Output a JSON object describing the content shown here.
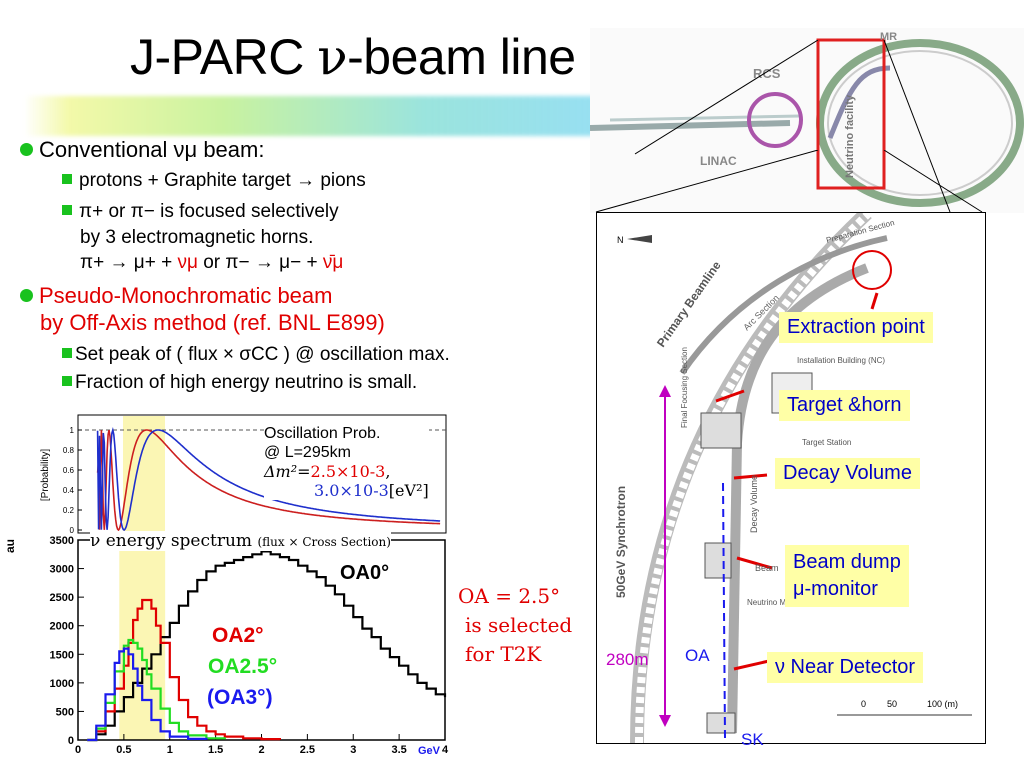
{
  "title": {
    "prefix": "J-PARC ",
    "nu": "ν",
    "suffix": "-beam line"
  },
  "bullets": {
    "b1": "Conventional νμ beam:",
    "b1_sub1": "protons + Graphite target  → pions",
    "b1_sub2_line1": "π+ or π− is focused selectively",
    "b1_sub2_line2": "by 3 electromagnetic horns.",
    "b1_sub2_line3_a": "π+ → μ+ + ",
    "b1_sub2_line3_nu": "νμ",
    "b1_sub2_line3_b": " or  π− → μ− + ",
    "b1_sub2_line3_nubar": "ν̄μ",
    "b2_line1": "Pseudo-Monochromatic beam",
    "b2_line2": "by Off-Axis method (ref. BNL E899)",
    "b2_sub1": "Set peak of ( flux × σCC ) @ oscillation max.",
    "b2_sub2": "Fraction of high energy neutrino is small."
  },
  "osc_plot": {
    "legend_line1": "Oscillation Prob.",
    "legend_line2": "@ L=295km",
    "legend_line3_a": "Δm²=",
    "legend_line3_red": "2.5×10-3",
    "legend_line3_c": ",",
    "legend_line4_blue": "3.0×10-3",
    "legend_line4_d": "[eV²]",
    "ylabel": "[Probability]",
    "yticks": [
      "1",
      "0.8",
      "0.6",
      "0.4",
      "0.2",
      "0"
    ]
  },
  "spectrum": {
    "title_main": "ν energy spectrum",
    "title_small": "(flux × Cross Section)",
    "ylabel": "au",
    "xunit": "GeV",
    "yticks": [
      "3500",
      "3000",
      "2500",
      "2000",
      "1500",
      "1000",
      "500",
      "0"
    ],
    "xticks": [
      "0",
      "0.5",
      "1",
      "1.5",
      "2",
      "2.5",
      "3",
      "3.5",
      "4"
    ],
    "label_oa0": "OA0°",
    "label_oa2": "OA2°",
    "label_oa25": "OA2.5°",
    "label_oa3": "(OA3°)"
  },
  "chart_data": {
    "type": "line",
    "xlabel": "GeV",
    "ylabel": "au",
    "xlim": [
      0,
      4
    ],
    "ylim": [
      0,
      3500
    ],
    "series": [
      {
        "name": "OA0°",
        "color": "#000000",
        "x": [
          0.1,
          0.2,
          0.3,
          0.4,
          0.5,
          0.6,
          0.7,
          0.8,
          0.9,
          1.0,
          1.1,
          1.2,
          1.3,
          1.4,
          1.5,
          1.6,
          1.7,
          1.8,
          1.9,
          2.0,
          2.1,
          2.2,
          2.3,
          2.4,
          2.5,
          2.6,
          2.7,
          2.8,
          2.9,
          3.0,
          3.1,
          3.2,
          3.3,
          3.4,
          3.5,
          3.6,
          3.7,
          3.8,
          3.9,
          4.0
        ],
        "y": [
          0,
          100,
          250,
          500,
          750,
          1000,
          1250,
          1500,
          1800,
          2050,
          2350,
          2600,
          2800,
          2950,
          3050,
          3100,
          3150,
          3200,
          3250,
          3300,
          3250,
          3200,
          3150,
          3050,
          2950,
          2850,
          2700,
          2550,
          2350,
          2150,
          1950,
          1800,
          1600,
          1450,
          1300,
          1150,
          1000,
          900,
          800,
          750
        ]
      },
      {
        "name": "OA2°",
        "color": "#e00000",
        "x": [
          0.1,
          0.2,
          0.3,
          0.4,
          0.5,
          0.55,
          0.6,
          0.65,
          0.7,
          0.75,
          0.8,
          0.85,
          0.9,
          1.0,
          1.1,
          1.2,
          1.3,
          1.4,
          1.5,
          1.6,
          1.8,
          2.0,
          2.2
        ],
        "y": [
          0,
          150,
          500,
          900,
          1300,
          1700,
          2100,
          2300,
          2450,
          2450,
          2300,
          2000,
          1700,
          1100,
          700,
          400,
          250,
          150,
          100,
          60,
          30,
          15,
          5
        ]
      },
      {
        "name": "OA2.5°",
        "color": "#22dd22",
        "x": [
          0.1,
          0.2,
          0.3,
          0.4,
          0.5,
          0.55,
          0.6,
          0.65,
          0.7,
          0.75,
          0.8,
          0.9,
          1.0,
          1.1,
          1.2,
          1.4,
          1.6
        ],
        "y": [
          0,
          200,
          650,
          1200,
          1650,
          1750,
          1700,
          1600,
          1400,
          1150,
          900,
          550,
          300,
          150,
          80,
          30,
          10
        ]
      },
      {
        "name": "(OA3°)",
        "color": "#1a1aee",
        "x": [
          0.1,
          0.2,
          0.3,
          0.4,
          0.45,
          0.5,
          0.55,
          0.6,
          0.65,
          0.7,
          0.8,
          0.9,
          1.0,
          1.2,
          1.4
        ],
        "y": [
          0,
          250,
          800,
          1350,
          1550,
          1600,
          1500,
          1250,
          950,
          700,
          350,
          150,
          60,
          20,
          5
        ]
      }
    ]
  },
  "right_panel": {
    "oa_text_line1": "OA = 2.5°",
    "oa_text_line2": "is selected",
    "oa_text_line3": "for T2K",
    "callout_extraction": "Extraction point",
    "callout_target": "Target &horn",
    "callout_decay": "Decay Volume",
    "callout_beamdump_1": "Beam dump",
    "callout_beamdump_2": "μ-monitor",
    "callout_nd": "ν Near Detector",
    "len_label": "280m",
    "oa_label": "OA",
    "sk_label": "SK",
    "map_labels": {
      "mr": "MR",
      "rcs": "RCS",
      "linac": "LINAC",
      "nf": "Neutrino facility",
      "syn": "50GeV Synchrotron",
      "primary": "Primary Beamline",
      "arc": "Arc Section",
      "prep": "Preparation Section",
      "ffs": "Final Focusing Section",
      "install": "Installation Building (NC)",
      "tstation": "Target Station",
      "decay": "Decay Volume",
      "beam": "Beam",
      "nbuild": "Neutrino Monitor Building No.3 (NU3)",
      "n": "N",
      "scale": [
        "0",
        "50",
        "100 (m)"
      ]
    }
  }
}
